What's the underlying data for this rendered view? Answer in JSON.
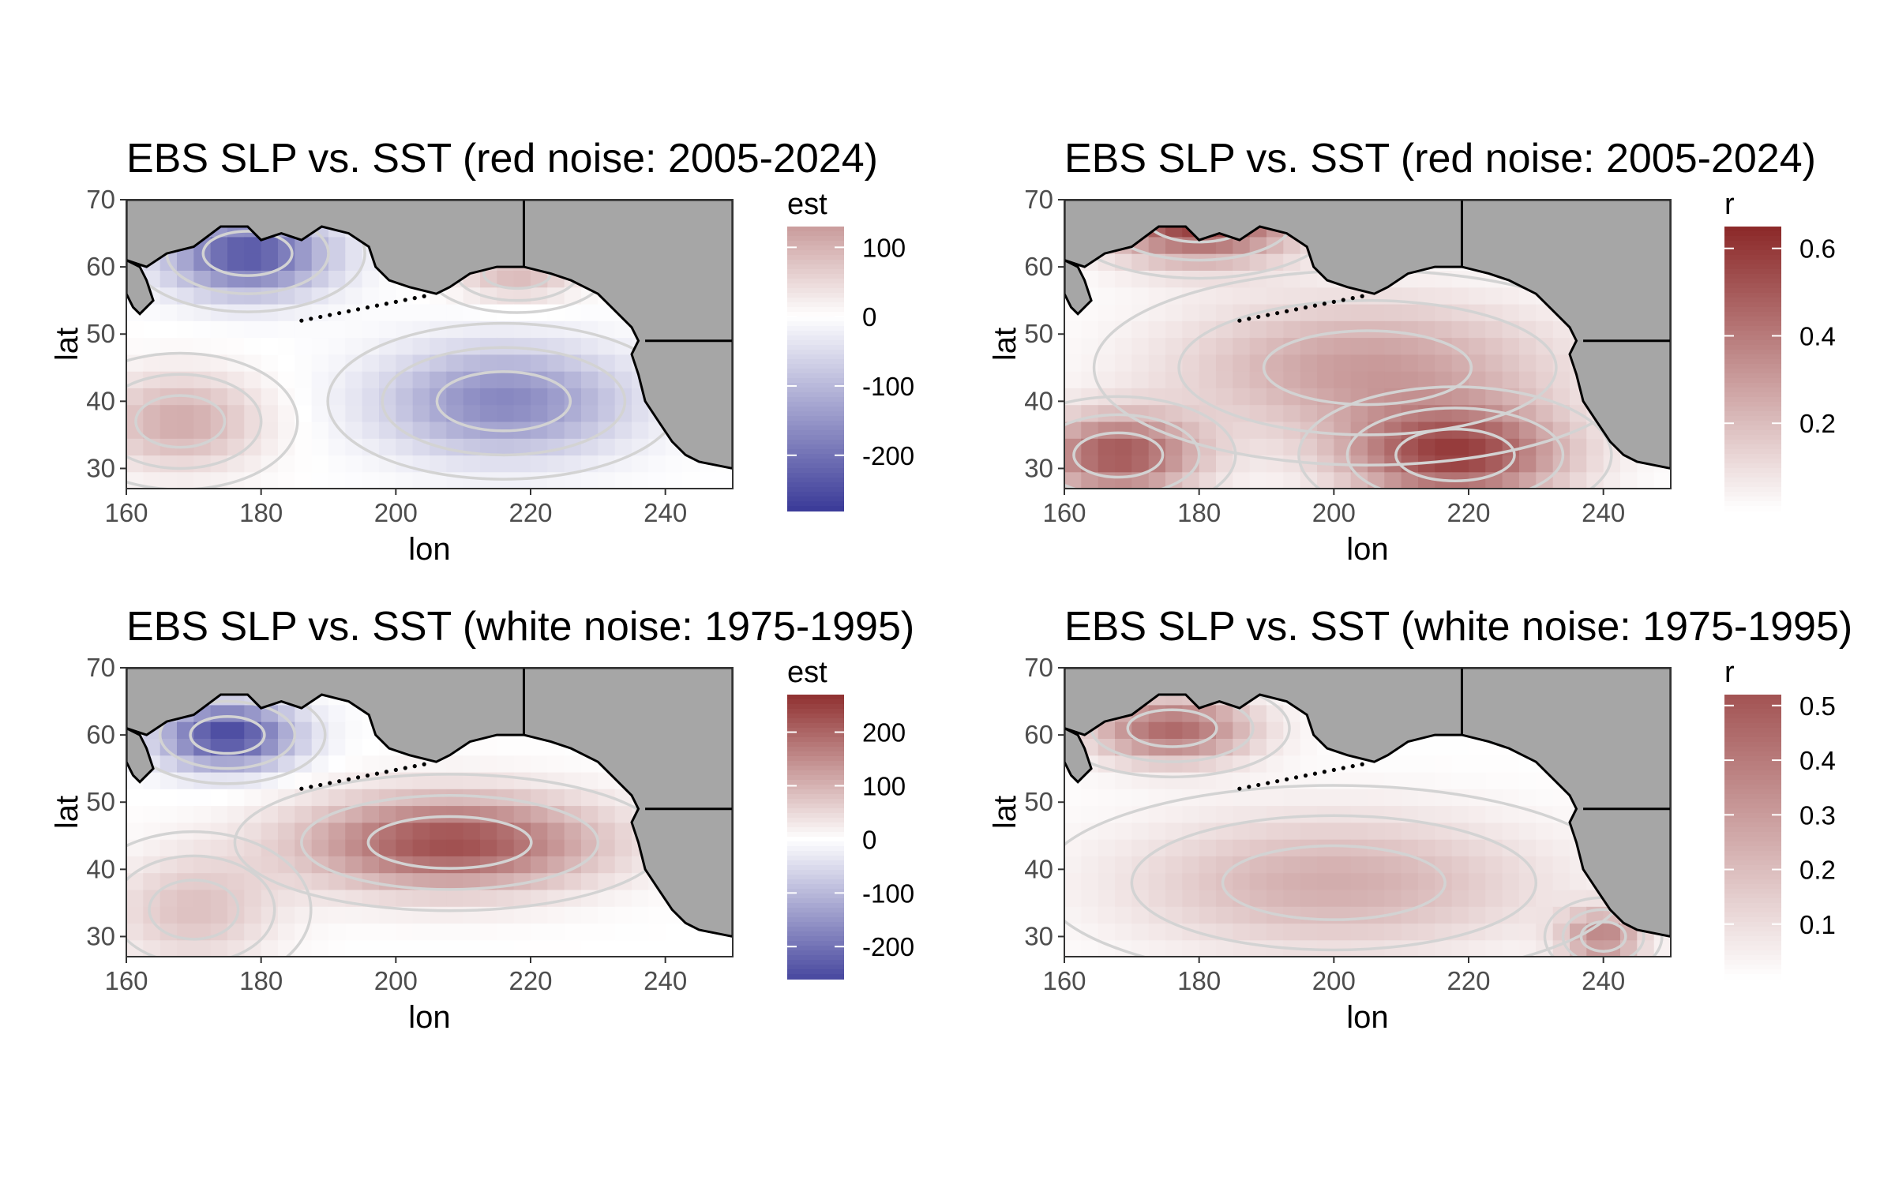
{
  "colors": {
    "land": "#a6a6a6",
    "contour": "#d3d3d3",
    "coastline": "#000000",
    "low": "#3a3a98",
    "mid": "#ffffff",
    "high": "#8b2828",
    "tick_text": "#4d4d4d"
  },
  "chart_data": [
    {
      "type": "heatmap",
      "title": "EBS SLP vs. SST (red noise: 2005-2024)",
      "xlabel": "lon",
      "ylabel": "lat",
      "xlim": [
        160,
        250
      ],
      "ylim": [
        27,
        70
      ],
      "x_ticks": [
        "160",
        "180",
        "200",
        "220",
        "240"
      ],
      "y_ticks": [
        "30",
        "40",
        "50",
        "60",
        "70"
      ],
      "legend_title": "est",
      "legend_ticks": [
        "100",
        "0",
        "-100",
        "-200"
      ],
      "legend_range": [
        -280,
        130
      ],
      "color_scale": "diverging",
      "pattern": [
        {
          "lon": 178,
          "lat": 62,
          "value": -240,
          "spread_lon": 12,
          "spread_lat": 6
        },
        {
          "lon": 216,
          "lat": 40,
          "value": -170,
          "spread_lon": 18,
          "spread_lat": 8
        },
        {
          "lon": 168,
          "lat": 37,
          "value": 110,
          "spread_lon": 12,
          "spread_lat": 7
        },
        {
          "lon": 218,
          "lat": 59,
          "value": 90,
          "spread_lon": 9,
          "spread_lat": 4
        }
      ]
    },
    {
      "type": "heatmap",
      "title": "EBS SLP vs. SST (red noise: 2005-2024)",
      "xlabel": "lon",
      "ylabel": "lat",
      "xlim": [
        160,
        250
      ],
      "ylim": [
        27,
        70
      ],
      "x_ticks": [
        "160",
        "180",
        "200",
        "220",
        "240"
      ],
      "y_ticks": [
        "30",
        "40",
        "50",
        "60",
        "70"
      ],
      "legend_title": "r",
      "legend_ticks": [
        "0.6",
        "0.4",
        "0.2"
      ],
      "legend_range": [
        0,
        0.65
      ],
      "color_scale": "sequential",
      "pattern": [
        {
          "lon": 180,
          "lat": 67,
          "value": 0.6,
          "spread_lon": 14,
          "spread_lat": 6
        },
        {
          "lon": 168,
          "lat": 32,
          "value": 0.5,
          "spread_lon": 12,
          "spread_lat": 6
        },
        {
          "lon": 218,
          "lat": 32,
          "value": 0.55,
          "spread_lon": 16,
          "spread_lat": 7
        },
        {
          "lon": 205,
          "lat": 45,
          "value": 0.3,
          "spread_lon": 28,
          "spread_lat": 10
        }
      ]
    },
    {
      "type": "heatmap",
      "title": "EBS SLP vs. SST (white noise: 1975-1995)",
      "xlabel": "lon",
      "ylabel": "lat",
      "xlim": [
        160,
        250
      ],
      "ylim": [
        27,
        70
      ],
      "x_ticks": [
        "160",
        "180",
        "200",
        "220",
        "240"
      ],
      "y_ticks": [
        "30",
        "40",
        "50",
        "60",
        "70"
      ],
      "legend_title": "est",
      "legend_ticks": [
        "200",
        "100",
        "0",
        "-100",
        "-200"
      ],
      "legend_range": [
        -260,
        270
      ],
      "color_scale": "diverging",
      "pattern": [
        {
          "lon": 175,
          "lat": 60,
          "value": -260,
          "spread_lon": 10,
          "spread_lat": 5
        },
        {
          "lon": 208,
          "lat": 44,
          "value": 230,
          "spread_lon": 22,
          "spread_lat": 7
        },
        {
          "lon": 170,
          "lat": 34,
          "value": 80,
          "spread_lon": 12,
          "spread_lat": 8
        }
      ]
    },
    {
      "type": "heatmap",
      "title": "EBS SLP vs. SST (white noise: 1975-1995)",
      "xlabel": "lon",
      "ylabel": "lat",
      "xlim": [
        160,
        250
      ],
      "ylim": [
        27,
        70
      ],
      "x_ticks": [
        "160",
        "180",
        "200",
        "220",
        "240"
      ],
      "y_ticks": [
        "30",
        "40",
        "50",
        "60",
        "70"
      ],
      "legend_title": "r",
      "legend_ticks": [
        "0.5",
        "0.4",
        "0.3",
        "0.2",
        "0.1"
      ],
      "legend_range": [
        0,
        0.52
      ],
      "color_scale": "sequential",
      "pattern": [
        {
          "lon": 176,
          "lat": 61,
          "value": 0.45,
          "spread_lon": 12,
          "spread_lat": 5
        },
        {
          "lon": 200,
          "lat": 38,
          "value": 0.25,
          "spread_lon": 30,
          "spread_lat": 10
        },
        {
          "lon": 240,
          "lat": 30,
          "value": 0.35,
          "spread_lon": 6,
          "spread_lat": 4
        }
      ]
    }
  ]
}
